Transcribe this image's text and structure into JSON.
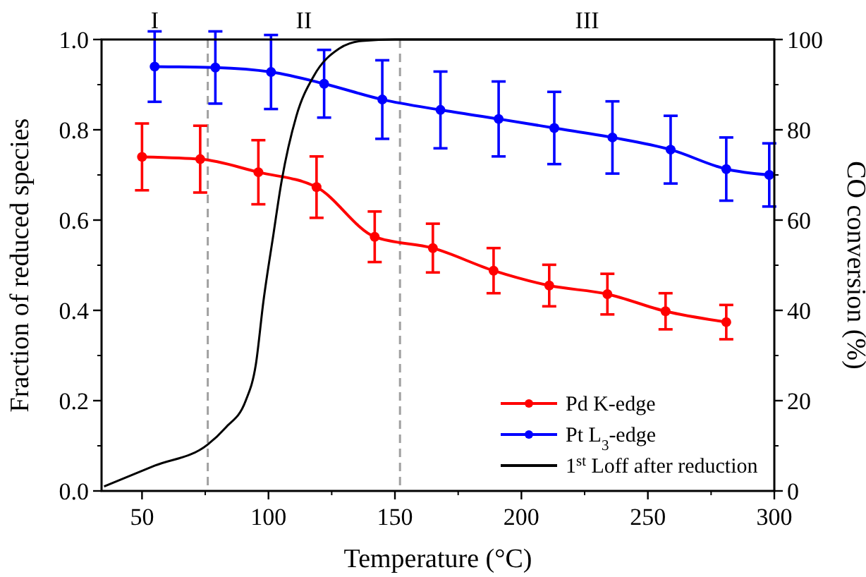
{
  "chart_data": {
    "type": "line",
    "xlabel": "Temperature (°C)",
    "ylabel": "Fraction of reduced species",
    "y2label": "CO conversion (%)",
    "xlim": [
      34,
      300
    ],
    "xticks": [
      50,
      100,
      150,
      200,
      250,
      300
    ],
    "ylim": [
      0,
      1
    ],
    "yticks": [
      {
        "value": 0,
        "label": "0.0"
      },
      0.2,
      0.4,
      0.6,
      0.8,
      {
        "value": 1,
        "label": "1.0"
      }
    ],
    "y2lim": [
      0,
      100
    ],
    "y2ticks": [
      0,
      20,
      40,
      60,
      80,
      100
    ],
    "marker": "circle",
    "legend": "bottom right",
    "grid": false,
    "series": [
      {
        "name": "Pd K-edge",
        "color": "#ff0000",
        "x": [
          50,
          73,
          96,
          119,
          142,
          165,
          189,
          211,
          234,
          257,
          281
        ],
        "values": [
          0.74,
          0.735,
          0.706,
          0.673,
          0.563,
          0.538,
          0.488,
          0.455,
          0.436,
          0.398,
          0.374
        ],
        "errors": [
          0.074,
          0.074,
          0.071,
          0.068,
          0.056,
          0.054,
          0.05,
          0.046,
          0.045,
          0.04,
          0.038
        ]
      },
      {
        "name": "Pt L$_{3}$-edge",
        "color": "#0000ff",
        "x": [
          55,
          79,
          101,
          122,
          145,
          168,
          191,
          213,
          236,
          259,
          281,
          298
        ],
        "values": [
          0.94,
          0.938,
          0.928,
          0.902,
          0.867,
          0.844,
          0.824,
          0.804,
          0.783,
          0.756,
          0.713,
          0.7
        ],
        "errors": [
          0.078,
          0.08,
          0.082,
          0.075,
          0.087,
          0.085,
          0.083,
          0.08,
          0.08,
          0.075,
          0.07,
          0.07
        ]
      },
      {
        "name": "1$^{st}$ Loff after reduction",
        "color": "#000000",
        "axis": "y2",
        "marker": "none",
        "x": [
          35,
          55,
          76,
          83,
          91,
          95,
          98,
          102,
          105,
          111,
          118,
          128,
          137,
          150,
          200,
          250,
          300
        ],
        "values": [
          1,
          5.6,
          10.3,
          14,
          20,
          28,
          42,
          57,
          68,
          83,
          92,
          98,
          99.7,
          100,
          100,
          100,
          100
        ]
      }
    ],
    "ref_lines": [
      {
        "axis": "x",
        "value": 76,
        "color": "#a0a0a0",
        "line_style": "dashed"
      },
      {
        "axis": "x",
        "value": 152,
        "color": "#a0a0a0",
        "line_style": "dashed"
      }
    ],
    "annotations": [
      "I",
      "II",
      "III"
    ]
  }
}
